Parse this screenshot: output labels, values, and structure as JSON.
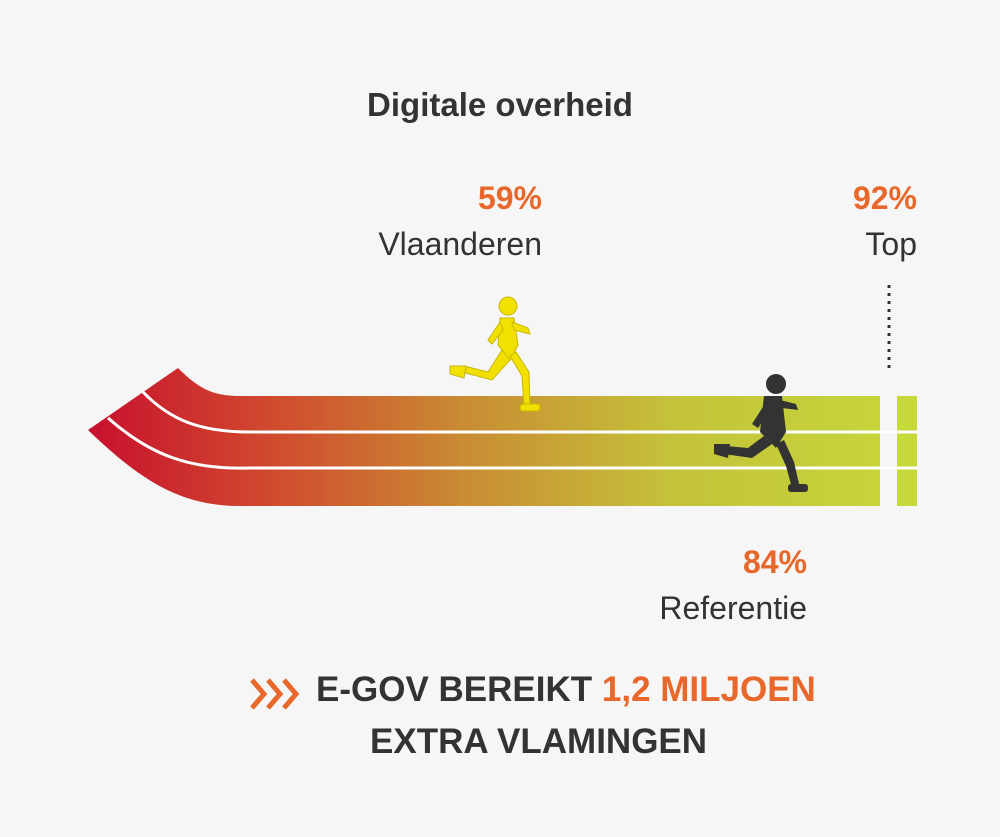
{
  "title": "Digitale overheid",
  "chart_data": {
    "type": "track-progress",
    "title": "Digitale overheid",
    "markers": [
      {
        "value": 59,
        "display": "59%",
        "label": "Vlaanderen",
        "runner_color": "#f2e000"
      },
      {
        "value": 84,
        "display": "84%",
        "label": "Referentie",
        "runner_color": "#333333"
      },
      {
        "value": 92,
        "display": "92%",
        "label": "Top"
      }
    ],
    "unit": "%"
  },
  "colors": {
    "accent": "#e8672a",
    "track_start": "#c8102e",
    "track_end": "#c6d83a",
    "text": "#333333"
  },
  "footer": {
    "icon": "triple-chevron-right-icon",
    "part1": "E-GOV BEREIKT ",
    "highlight": "1,2 MILJOEN",
    "part2": "EXTRA VLAMINGEN"
  }
}
